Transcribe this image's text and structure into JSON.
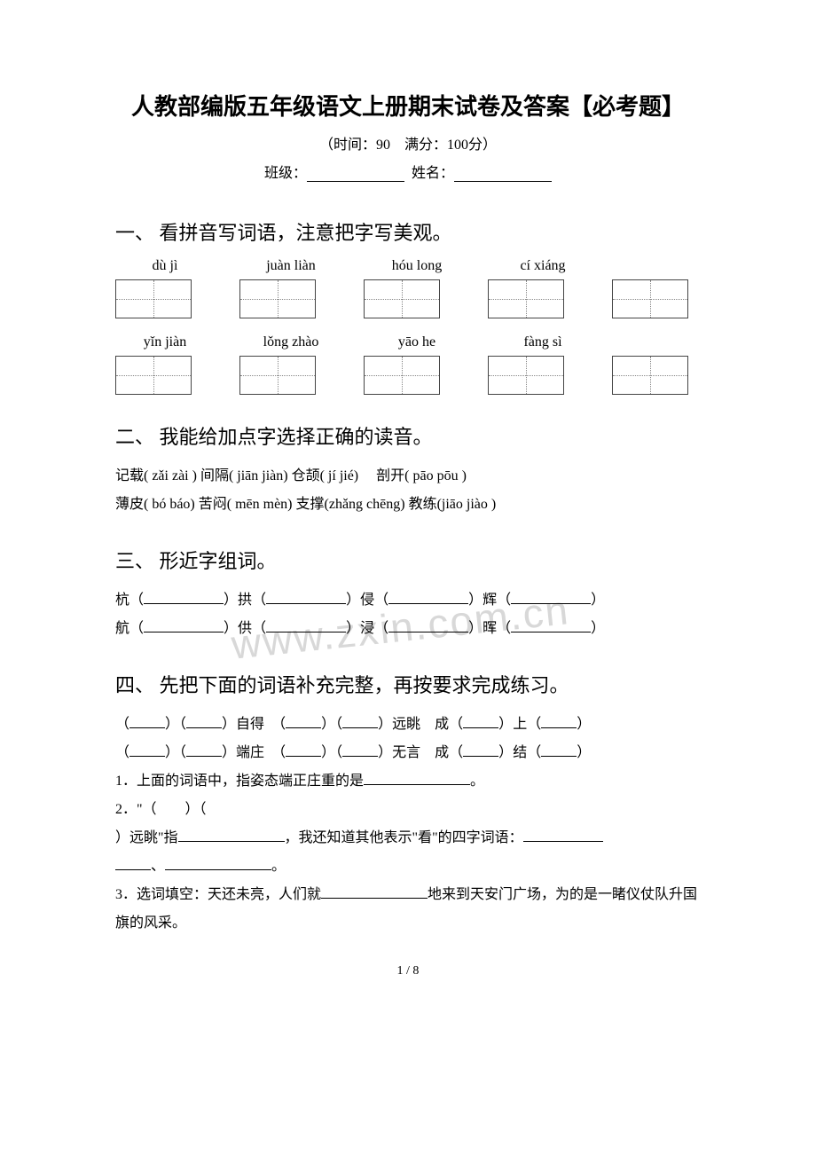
{
  "title": "人教部编版五年级语文上册期末试卷及答案【必考题】",
  "subtitle": "（时间：90　满分：100分）",
  "form": {
    "class_label": "班级：",
    "name_label": "姓名："
  },
  "watermark": "www.zxin.com.cn",
  "page_number": "1 / 8",
  "section1": {
    "heading": "一、 看拼音写词语，注意把字写美观。",
    "row1": [
      "dù jì",
      "juàn liàn",
      "hóu long",
      "cí xiáng"
    ],
    "row2": [
      "yǐn jiàn",
      "lǒng zhào",
      "yāo he",
      "fàng sì"
    ]
  },
  "section2": {
    "heading": "二、 我能给加点字选择正确的读音。",
    "line1": "记载( zǎi  zài ) 间隔( jiān  jiàn)  仓颉( jí  jié)　  剖开( pāo  pōu )",
    "line2": "薄皮( bó  báo) 苦闷( mēn  mèn) 支撑(zhǎng chēng) 教练(jiāo  jiào )"
  },
  "section3": {
    "heading": "三、 形近字组词。",
    "pairs": [
      [
        "杭",
        "拱",
        "侵",
        "辉"
      ],
      [
        "航",
        "供",
        "浸",
        "晖"
      ]
    ]
  },
  "section4": {
    "heading": "四、 先把下面的词语补充完整，再按要求完成练习。",
    "line1_a": "自得",
    "line1_b": "远眺",
    "line1_c1": "成",
    "line1_c2": "上",
    "line2_a": "端庄",
    "line2_b": "无言",
    "line2_c1": "成",
    "line2_c2": "结",
    "q1": "1．上面的词语中，指姿态端正庄重的是",
    "q1_end": "。",
    "q2_a": "2．\"（　　）（",
    "q2_b": "）远眺\"指",
    "q2_c": "，我还知道其他表示\"看\"的四字词语：",
    "q2_d": "、",
    "q2_e": "。",
    "q3_a": "3．选词填空：天还未亮，人们就",
    "q3_b": "地来到天安门广场，为的是一睹仪仗队升国旗的风采。"
  }
}
